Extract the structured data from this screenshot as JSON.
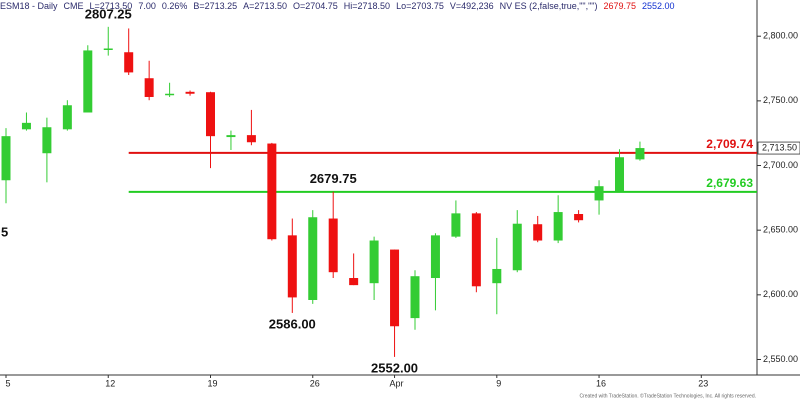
{
  "chart_data": {
    "type": "candlestick",
    "header": [
      {
        "text": "ESM18 - Daily",
        "color": "#2b2b6b"
      },
      {
        "text": "CME",
        "color": "#2b2b6b"
      },
      {
        "text": "L=2713.50",
        "color": "#2b2b6b"
      },
      {
        "text": "7.00",
        "color": "#2b2b6b"
      },
      {
        "text": "0.26%",
        "color": "#2b2b6b"
      },
      {
        "text": "B=2713.25",
        "color": "#2b2b6b"
      },
      {
        "text": "A=2713.50",
        "color": "#2b2b6b"
      },
      {
        "text": "O=2704.75",
        "color": "#2b2b6b"
      },
      {
        "text": "Hi=2718.50",
        "color": "#2b2b6b"
      },
      {
        "text": "Lo=2703.75",
        "color": "#2b2b6b"
      },
      {
        "text": "V=492,236",
        "color": "#2b2b6b"
      },
      {
        "text": "NV ES (2,false,true,\"\",\"\")",
        "color": "#2b2b6b"
      },
      {
        "text": "2679.75",
        "color": "#e01010"
      },
      {
        "text": "2552.00",
        "color": "#1030d0"
      }
    ],
    "categories": [
      "5",
      null,
      null,
      null,
      null,
      "12",
      null,
      null,
      null,
      null,
      "19",
      null,
      null,
      null,
      null,
      "26",
      null,
      null,
      null,
      "Apr",
      null,
      null,
      null,
      null,
      "9",
      null,
      null,
      null,
      null,
      "16",
      null,
      null,
      null,
      null,
      "23"
    ],
    "open": [
      2688.6,
      2728,
      2709.5,
      2728,
      2741,
      2790,
      2787.6,
      2767.5,
      2755,
      2757,
      2756.7,
      2722,
      2723.5,
      2717,
      2646,
      2596,
      2659,
      2613,
      2609,
      2635,
      2582,
      2613,
      2645,
      2663,
      2609,
      2619,
      2654.6,
      2642,
      2662.5,
      2673,
      2680,
      2704.75,
      null,
      null,
      null
    ],
    "high": [
      2728.9,
      2741,
      2737,
      2750.5,
      2793,
      2807.25,
      2806,
      2781,
      2764,
      2758,
      2757,
      2727,
      2743,
      2717.5,
      2659,
      2665.5,
      2679.75,
      2632,
      2645,
      2635,
      2619,
      2647.6,
      2673,
      2664,
      2644,
      2665.5,
      2661,
      2677,
      2665.5,
      2688.6,
      2712.6,
      2718.5,
      null,
      null,
      null
    ],
    "low": [
      2670.8,
      2727,
      2687,
      2727,
      2741,
      2785,
      2770,
      2750.5,
      2753,
      2754,
      2698,
      2712,
      2715.7,
      2642,
      2586,
      2593,
      2613,
      2607.5,
      2596,
      2552,
      2573,
      2588,
      2644,
      2602,
      2585,
      2617.5,
      2640.7,
      2640,
      2656,
      2662,
      2680,
      2703.75,
      null,
      null,
      null
    ],
    "close": [
      2722.7,
      2733,
      2729.6,
      2746.6,
      2789,
      2790.5,
      2772,
      2753,
      2755.5,
      2755.5,
      2722.7,
      2723.5,
      2718,
      2643,
      2598,
      2660,
      2617.5,
      2607.5,
      2642,
      2575.7,
      2614.4,
      2646,
      2663,
      2606.6,
      2620,
      2655,
      2642,
      2664,
      2657.7,
      2684,
      2706.4,
      2713.5,
      null,
      null,
      null
    ],
    "up_color": "#33cc33",
    "down_color": "#ee1111",
    "ylim": [
      2538,
      2828
    ],
    "yticks": [
      {
        "value": 2550,
        "label": "2,550.00"
      },
      {
        "value": 2600,
        "label": "2,600.00"
      },
      {
        "value": 2650,
        "label": "2,650.00"
      },
      {
        "value": 2700,
        "label": "2,700.00"
      },
      {
        "value": 2750,
        "label": "2,750.00"
      },
      {
        "value": 2800,
        "label": "2,800.00"
      }
    ],
    "levels": [
      {
        "value": 2709.74,
        "label": "2,709.74",
        "color": "#e01010"
      },
      {
        "value": 2679.63,
        "label": "2,679.63",
        "color": "#22cc22"
      }
    ],
    "last_price": {
      "value": 2713.5,
      "label": "2,713.50"
    },
    "annotations": [
      {
        "text": "2807.25",
        "value": 2807.25,
        "index": 5,
        "pos": "above"
      },
      {
        "text": "2679.75",
        "value": 2679.75,
        "index": 16,
        "pos": "above"
      },
      {
        "text": "2586.00",
        "value": 2586,
        "index": 14,
        "pos": "below"
      },
      {
        "text": "2552.00",
        "value": 2552,
        "index": 19,
        "pos": "below"
      }
    ],
    "edge_label": "5",
    "footer": "Created with TradeStation. ©TradeStation Technologies, Inc. All rights reserved."
  }
}
